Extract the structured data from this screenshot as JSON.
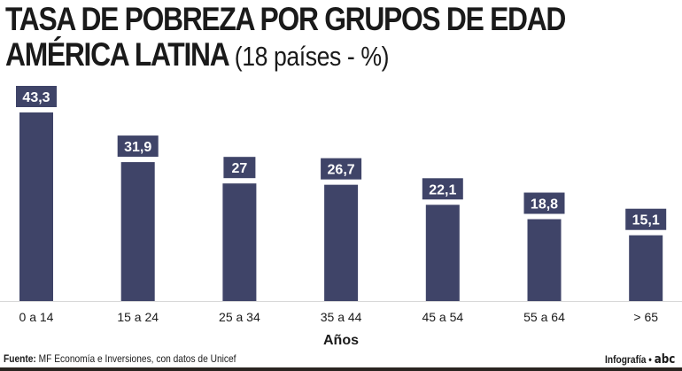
{
  "chart_data": {
    "type": "bar",
    "title": "TASA DE POBREZA POR GRUPOS DE EDAD",
    "subtitle": "AMÉRICA LATINA",
    "subtitle_note": "(18 países - %)",
    "xlabel": "Años",
    "ylabel": "",
    "categories": [
      "0 a 14",
      "15 a 24",
      "25 a 34",
      "35 a 44",
      "45 a 54",
      "55 a 64",
      "> 65"
    ],
    "values": [
      43.3,
      31.9,
      27,
      26.7,
      22.1,
      18.8,
      15.1
    ],
    "data_labels": [
      "43,3",
      "31,9",
      "27",
      "26,7",
      "22,1",
      "18,8",
      "15,1"
    ],
    "ylim": [
      0,
      45
    ],
    "grid": false,
    "bar_color": "#3f4468"
  },
  "footer": {
    "source_label": "Fuente:",
    "source_text": "MF Economía e Inversiones, con datos de Unicef",
    "credit": "Infografía •",
    "logo": "abc"
  }
}
